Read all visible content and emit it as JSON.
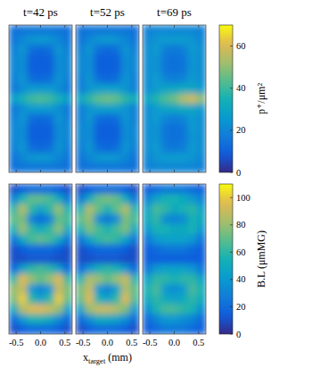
{
  "chart_data": {
    "type": "heatmap",
    "xlabel": {
      "base": "x",
      "sub": "target",
      "unit": " (mm)"
    },
    "xlim": [
      -0.65,
      0.65
    ],
    "xticks": [
      -0.5,
      {
        "value": 0,
        "label": "0.0"
      },
      0.5
    ],
    "rows": [
      {
        "colorbar": {
          "label": "p⁺/μm²",
          "range": [
            0,
            70
          ],
          "ticks": [
            0,
            20,
            40,
            60
          ]
        },
        "panels": [
          {
            "title": "t=42 ps",
            "cells": [
              [
                14,
                15,
                16,
                16,
                16,
                15,
                14
              ],
              [
                15,
                20,
                24,
                25,
                24,
                20,
                15
              ],
              [
                18,
                24,
                14,
                12,
                14,
                24,
                18
              ],
              [
                20,
                22,
                10,
                10,
                10,
                22,
                20
              ],
              [
                20,
                22,
                10,
                10,
                10,
                22,
                20
              ],
              [
                18,
                24,
                14,
                12,
                14,
                24,
                18
              ],
              [
                16,
                22,
                26,
                26,
                26,
                22,
                16
              ],
              [
                28,
                34,
                40,
                42,
                40,
                34,
                28
              ],
              [
                16,
                22,
                26,
                26,
                26,
                22,
                16
              ],
              [
                18,
                24,
                14,
                12,
                14,
                24,
                18
              ],
              [
                20,
                22,
                10,
                10,
                10,
                22,
                20
              ],
              [
                20,
                22,
                10,
                10,
                10,
                22,
                20
              ],
              [
                18,
                24,
                14,
                12,
                14,
                24,
                18
              ],
              [
                15,
                20,
                24,
                25,
                24,
                20,
                15
              ],
              [
                14,
                15,
                16,
                16,
                16,
                15,
                14
              ]
            ]
          },
          {
            "title": "t=52 ps",
            "cells": [
              [
                14,
                15,
                16,
                16,
                16,
                15,
                14
              ],
              [
                15,
                20,
                24,
                25,
                24,
                20,
                15
              ],
              [
                18,
                24,
                14,
                12,
                14,
                24,
                18
              ],
              [
                20,
                22,
                10,
                10,
                10,
                22,
                20
              ],
              [
                20,
                22,
                10,
                10,
                10,
                22,
                20
              ],
              [
                18,
                24,
                14,
                12,
                14,
                24,
                18
              ],
              [
                18,
                24,
                28,
                28,
                28,
                24,
                18
              ],
              [
                30,
                38,
                44,
                46,
                44,
                38,
                32
              ],
              [
                18,
                24,
                28,
                28,
                28,
                24,
                18
              ],
              [
                18,
                24,
                14,
                12,
                14,
                24,
                18
              ],
              [
                20,
                22,
                10,
                10,
                10,
                22,
                20
              ],
              [
                20,
                22,
                10,
                10,
                10,
                22,
                20
              ],
              [
                18,
                24,
                14,
                12,
                14,
                24,
                18
              ],
              [
                15,
                20,
                24,
                25,
                24,
                20,
                15
              ],
              [
                14,
                15,
                16,
                16,
                16,
                15,
                14
              ]
            ]
          },
          {
            "title": "t=69 ps",
            "cells": [
              [
                18,
                20,
                20,
                20,
                20,
                20,
                18
              ],
              [
                20,
                24,
                26,
                26,
                26,
                24,
                20
              ],
              [
                22,
                26,
                18,
                16,
                18,
                26,
                22
              ],
              [
                22,
                24,
                16,
                14,
                16,
                24,
                22
              ],
              [
                22,
                24,
                16,
                14,
                16,
                24,
                22
              ],
              [
                22,
                26,
                20,
                18,
                20,
                26,
                22
              ],
              [
                22,
                26,
                30,
                30,
                32,
                30,
                26
              ],
              [
                30,
                36,
                42,
                46,
                54,
                58,
                50
              ],
              [
                22,
                26,
                30,
                30,
                32,
                30,
                26
              ],
              [
                22,
                26,
                20,
                18,
                20,
                26,
                22
              ],
              [
                22,
                24,
                16,
                14,
                16,
                26,
                22
              ],
              [
                22,
                24,
                16,
                14,
                16,
                24,
                22
              ],
              [
                22,
                26,
                18,
                16,
                18,
                26,
                22
              ],
              [
                20,
                24,
                26,
                26,
                26,
                24,
                20
              ],
              [
                18,
                20,
                20,
                20,
                20,
                20,
                18
              ]
            ]
          }
        ]
      },
      {
        "colorbar": {
          "label": "B.L (μmMG)",
          "range": [
            0,
            110
          ],
          "ticks": [
            0,
            20,
            40,
            60,
            80,
            100
          ]
        },
        "panels": [
          {
            "cells": [
              [
                10,
                15,
                20,
                20,
                20,
                15,
                10
              ],
              [
                30,
                55,
                70,
                70,
                65,
                50,
                25
              ],
              [
                60,
                85,
                60,
                45,
                60,
                80,
                55
              ],
              [
                70,
                75,
                30,
                20,
                30,
                70,
                65
              ],
              [
                55,
                80,
                60,
                50,
                60,
                78,
                50
              ],
              [
                25,
                50,
                65,
                70,
                65,
                50,
                25
              ],
              [
                10,
                15,
                20,
                20,
                20,
                15,
                10
              ],
              [
                10,
                10,
                12,
                12,
                12,
                10,
                10
              ],
              [
                20,
                45,
                60,
                65,
                60,
                45,
                20
              ],
              [
                60,
                95,
                80,
                70,
                80,
                95,
                60
              ],
              [
                80,
                90,
                40,
                30,
                40,
                90,
                75
              ],
              [
                75,
                100,
                60,
                45,
                60,
                100,
                70
              ],
              [
                50,
                85,
                95,
                95,
                90,
                80,
                45
              ],
              [
                20,
                40,
                55,
                55,
                50,
                35,
                20
              ],
              [
                10,
                15,
                20,
                20,
                20,
                15,
                10
              ]
            ]
          },
          {
            "cells": [
              [
                10,
                15,
                20,
                20,
                20,
                15,
                10
              ],
              [
                25,
                50,
                70,
                75,
                70,
                50,
                25
              ],
              [
                55,
                85,
                70,
                55,
                70,
                85,
                55
              ],
              [
                70,
                80,
                35,
                25,
                35,
                75,
                65
              ],
              [
                55,
                75,
                65,
                55,
                65,
                75,
                50
              ],
              [
                25,
                45,
                60,
                65,
                60,
                45,
                25
              ],
              [
                10,
                15,
                20,
                20,
                20,
                15,
                10
              ],
              [
                10,
                10,
                12,
                12,
                12,
                10,
                10
              ],
              [
                20,
                40,
                55,
                60,
                55,
                40,
                20
              ],
              [
                55,
                85,
                80,
                70,
                80,
                90,
                55
              ],
              [
                75,
                90,
                40,
                30,
                45,
                85,
                70
              ],
              [
                70,
                95,
                55,
                45,
                60,
                95,
                65
              ],
              [
                45,
                80,
                90,
                90,
                85,
                75,
                40
              ],
              [
                20,
                35,
                50,
                50,
                45,
                35,
                20
              ],
              [
                10,
                15,
                20,
                20,
                20,
                15,
                10
              ]
            ]
          },
          {
            "cells": [
              [
                15,
                20,
                25,
                25,
                25,
                20,
                15
              ],
              [
                30,
                45,
                55,
                55,
                50,
                40,
                30
              ],
              [
                45,
                65,
                60,
                50,
                55,
                60,
                45
              ],
              [
                50,
                60,
                35,
                30,
                35,
                55,
                50
              ],
              [
                40,
                55,
                55,
                50,
                50,
                55,
                40
              ],
              [
                25,
                40,
                45,
                45,
                45,
                40,
                25
              ],
              [
                15,
                20,
                25,
                25,
                25,
                20,
                15
              ],
              [
                15,
                15,
                15,
                15,
                15,
                15,
                15
              ],
              [
                25,
                40,
                45,
                45,
                45,
                40,
                25
              ],
              [
                45,
                60,
                60,
                55,
                60,
                60,
                45
              ],
              [
                55,
                65,
                40,
                35,
                40,
                65,
                55
              ],
              [
                50,
                60,
                50,
                45,
                50,
                60,
                50
              ],
              [
                35,
                55,
                65,
                65,
                60,
                55,
                35
              ],
              [
                20,
                30,
                40,
                40,
                35,
                30,
                20
              ],
              [
                15,
                20,
                25,
                25,
                25,
                20,
                15
              ]
            ]
          }
        ]
      }
    ]
  }
}
